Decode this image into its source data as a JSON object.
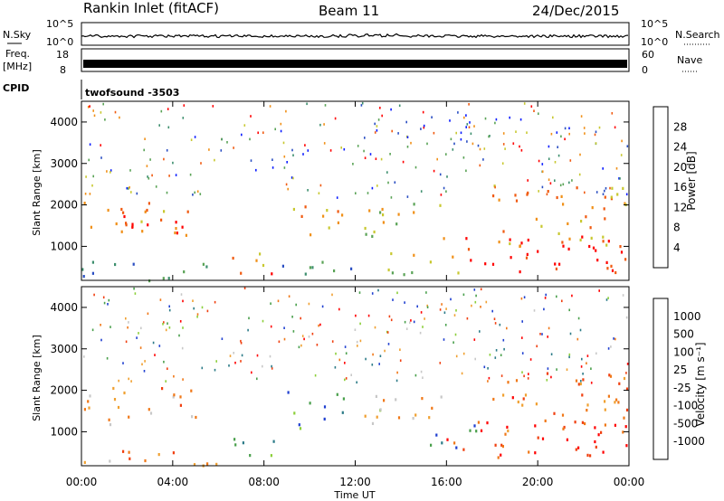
{
  "header": {
    "station": "Rankin Inlet (fitACF)",
    "beam": "Beam 11",
    "date": "24/Dec/2015"
  },
  "panels": {
    "nsky": {
      "label": "N.Sky",
      "ticks": [
        "10^5",
        "10^0"
      ],
      "right_label": "N.Search",
      "right_ticks": [
        "10^5",
        "10^0"
      ]
    },
    "freq": {
      "label_line1": "Freq.",
      "label_line2": "[MHz]",
      "ticks": [
        "18",
        "8"
      ],
      "right_label": "Nave",
      "right_ticks": [
        "60",
        "0"
      ]
    },
    "cpid": {
      "label": "CPID",
      "value": "twofsound -3503"
    }
  },
  "power_colorbar": {
    "label": "Power [dB]",
    "ticks": [
      "28",
      "24",
      "20",
      "16",
      "12",
      "8",
      "4"
    ]
  },
  "velocity_colorbar": {
    "label": "Velocity [m s⁻¹]",
    "ticks": [
      "1000",
      "500",
      "100",
      "25",
      "-25",
      "-100",
      "-500",
      "-1000"
    ]
  },
  "chart_data": [
    {
      "type": "heatmap",
      "title": "Power",
      "ylabel": "Slant Range [km]",
      "xlabel": "Time UT",
      "x_ticks": [
        "00:00",
        "04:00",
        "08:00",
        "12:00",
        "16:00",
        "20:00",
        "00:00"
      ],
      "y_ticks": [
        1000,
        2000,
        3000,
        4000
      ],
      "xlim": [
        0,
        24
      ],
      "ylim": [
        180,
        4500
      ],
      "colorscale_db": [
        0,
        30
      ],
      "colors": [
        "#0a1cff",
        "#2a4ec2",
        "#3d8f6e",
        "#5aa356",
        "#c8c830",
        "#f09018",
        "#f05a10",
        "#ff0000"
      ],
      "regions": [
        {
          "t0": 0.1,
          "t1": 5.0,
          "r0": 1250,
          "r1": 2150,
          "level": 0.7
        },
        {
          "t0": 1.0,
          "t1": 4.6,
          "r0": 1300,
          "r1": 1800,
          "level": 0.9
        },
        {
          "t0": 0.0,
          "t1": 6.0,
          "r0": 200,
          "r1": 650,
          "level": 0.35
        },
        {
          "t0": 6.5,
          "t1": 8.5,
          "r0": 250,
          "r1": 900,
          "level": 0.75
        },
        {
          "t0": 9.0,
          "t1": 11.5,
          "r0": 1100,
          "r1": 2000,
          "level": 0.7
        },
        {
          "t0": 8.0,
          "t1": 12.0,
          "r0": 300,
          "r1": 700,
          "level": 0.3
        },
        {
          "t0": 12.3,
          "t1": 16.0,
          "r0": 1200,
          "r1": 2100,
          "level": 0.55
        },
        {
          "t0": 13.0,
          "t1": 16.5,
          "r0": 350,
          "r1": 900,
          "level": 0.55
        },
        {
          "t0": 16.0,
          "t1": 24.0,
          "r0": 400,
          "r1": 1300,
          "level": 0.92
        },
        {
          "t0": 18.0,
          "t1": 24.0,
          "r0": 1000,
          "r1": 2500,
          "level": 0.7
        }
      ]
    },
    {
      "type": "heatmap",
      "title": "Velocity",
      "ylabel": "Slant Range [km]",
      "xlabel": "Time UT",
      "x_ticks": [
        "00:00",
        "04:00",
        "08:00",
        "12:00",
        "16:00",
        "20:00",
        "00:00"
      ],
      "y_ticks": [
        1000,
        2000,
        3000,
        4000
      ],
      "xlim": [
        0,
        24
      ],
      "ylim": [
        180,
        4500
      ],
      "colorscale_ms": [
        -1000,
        1000
      ],
      "colors": [
        "#ff0000",
        "#f04010",
        "#f07818",
        "#f0a030",
        "#c8c8c8",
        "#8ccf3a",
        "#4aa04c",
        "#2d7c88",
        "#1f3fd0"
      ],
      "regions": [
        {
          "t0": 0.1,
          "t1": 5.0,
          "r0": 1200,
          "r1": 2150,
          "level": 0.35
        },
        {
          "t0": 0.0,
          "t1": 6.0,
          "r0": 200,
          "r1": 650,
          "level": 0.3
        },
        {
          "t0": 6.5,
          "t1": 8.5,
          "r0": 250,
          "r1": 900,
          "level": 0.65
        },
        {
          "t0": 9.0,
          "t1": 11.5,
          "r0": 1100,
          "r1": 2000,
          "level": 0.8
        },
        {
          "t0": 12.3,
          "t1": 16.0,
          "r0": 1200,
          "r1": 2100,
          "level": 0.45
        },
        {
          "t0": 15.0,
          "t1": 17.5,
          "r0": 600,
          "r1": 1200,
          "level": 0.85
        },
        {
          "t0": 16.0,
          "t1": 24.0,
          "r0": 400,
          "r1": 1300,
          "level": 0.12
        },
        {
          "t0": 18.0,
          "t1": 24.0,
          "r0": 1000,
          "r1": 2500,
          "level": 0.25
        }
      ]
    }
  ]
}
